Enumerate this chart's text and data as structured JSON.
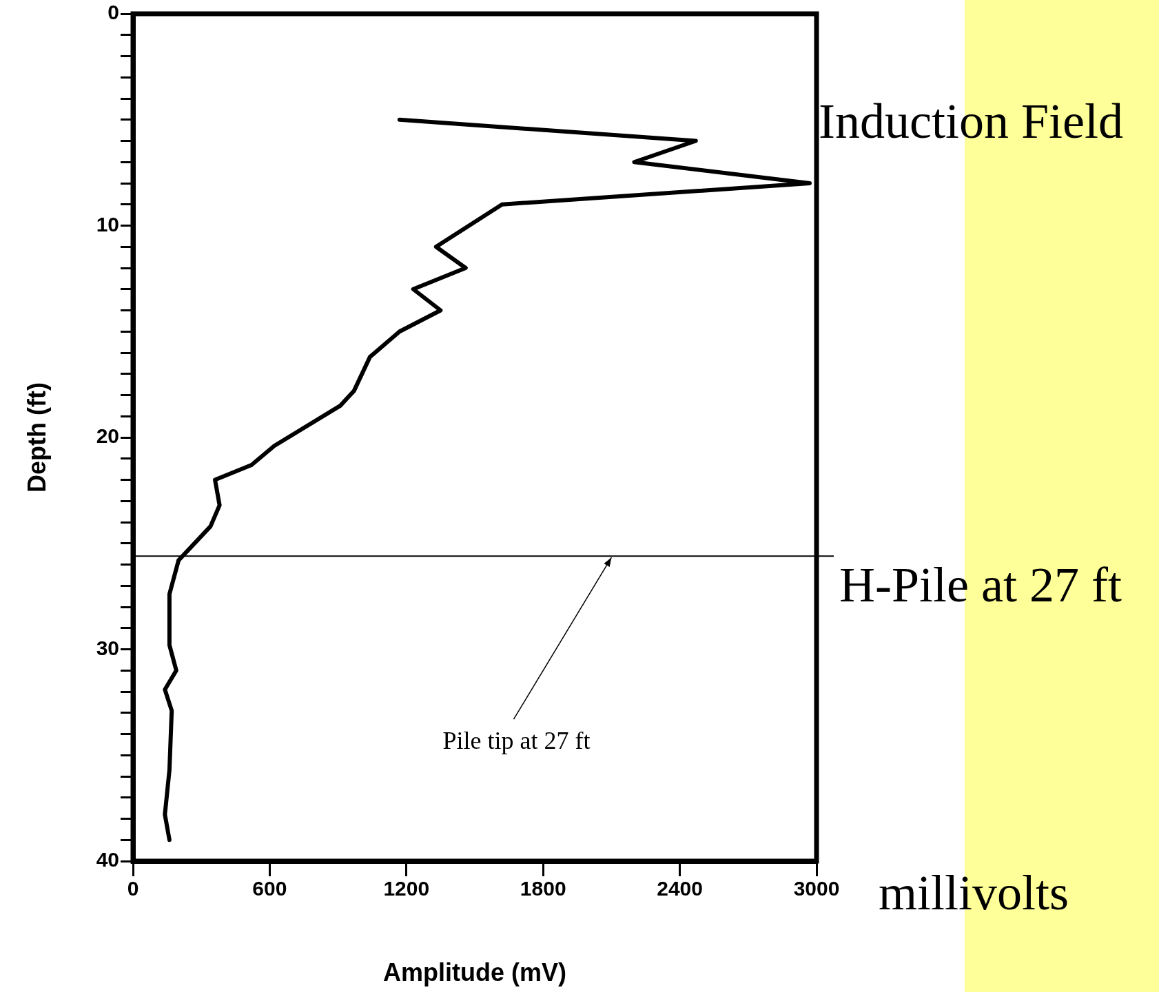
{
  "chart_data": {
    "type": "line",
    "xlabel": "Amplitude (mV)",
    "ylabel": "Depth (ft)",
    "xlim": [
      0,
      3000
    ],
    "xticks": [
      0,
      600,
      1200,
      1800,
      2400,
      3000
    ],
    "ylim": [
      40,
      0
    ],
    "yticks": [
      0,
      {
        "value": 1,
        "label": null
      },
      {
        "value": 2,
        "label": null
      },
      {
        "value": 3,
        "label": null
      },
      {
        "value": 4,
        "label": null
      },
      {
        "value": 5,
        "label": null
      },
      {
        "value": 6,
        "label": null
      },
      {
        "value": 7,
        "label": null
      },
      {
        "value": 8,
        "label": null
      },
      {
        "value": 9,
        "label": null
      },
      10,
      {
        "value": 11,
        "label": null
      },
      {
        "value": 12,
        "label": null
      },
      {
        "value": 13,
        "label": null
      },
      {
        "value": 14,
        "label": null
      },
      {
        "value": 15,
        "label": null
      },
      {
        "value": 16,
        "label": null
      },
      {
        "value": 17,
        "label": null
      },
      {
        "value": 18,
        "label": null
      },
      {
        "value": 19,
        "label": null
      },
      20,
      {
        "value": 21,
        "label": null
      },
      {
        "value": 22,
        "label": null
      },
      {
        "value": 23,
        "label": null
      },
      {
        "value": 24,
        "label": null
      },
      {
        "value": 25,
        "label": null
      },
      {
        "value": 26,
        "label": null
      },
      {
        "value": 27,
        "label": null
      },
      {
        "value": 28,
        "label": null
      },
      {
        "value": 29,
        "label": null
      },
      30,
      {
        "value": 31,
        "label": null
      },
      {
        "value": 32,
        "label": null
      },
      {
        "value": 33,
        "label": null
      },
      {
        "value": 34,
        "label": null
      },
      {
        "value": 35,
        "label": null
      },
      {
        "value": 36,
        "label": null
      },
      {
        "value": 37,
        "label": null
      },
      {
        "value": 38,
        "label": null
      },
      {
        "value": 39,
        "label": null
      },
      40
    ],
    "series": [
      {
        "color": "#000000",
        "x": [
          1170,
          2470,
          2200,
          2970,
          1620,
          1330,
          1460,
          1230,
          1350,
          1170,
          1040,
          970,
          910,
          620,
          520,
          360,
          380,
          340,
          200,
          160,
          160,
          190,
          140,
          170,
          160,
          140,
          160
        ],
        "values": [
          5,
          6,
          7,
          8,
          9,
          11,
          12,
          13,
          14,
          15,
          16.2,
          17.8,
          18.5,
          20.4,
          21.3,
          22,
          23.2,
          24.2,
          25.8,
          27.4,
          29.8,
          31,
          31.9,
          32.9,
          35.7,
          37.8,
          39
        ]
      }
    ],
    "ref_lines": [
      {
        "axis": "y",
        "value": 25.6,
        "color": "#000000"
      }
    ],
    "annotations": [
      "Induction Field",
      "H-Pile at 27 ft",
      "millivolts",
      {
        "text": "Pile tip at 27 ft",
        "x": 2100,
        "y": 25.6
      }
    ],
    "legend": false,
    "grid": false,
    "marker": "none",
    "line_style": "solid"
  }
}
